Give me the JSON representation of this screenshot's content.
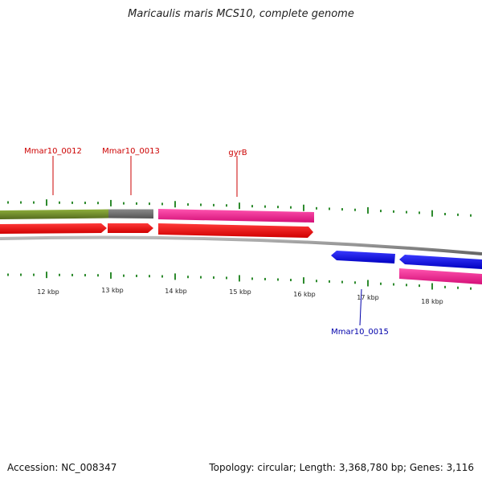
{
  "title": "Maricaulis maris MCS10, complete genome",
  "footer": {
    "accession": "Accession: NC_008347",
    "stats": "Topology: circular; Length: 3,368,780 bp; Genes: 3,116"
  },
  "genes": [
    {
      "name": "Mmar10_0012",
      "color": "#cc0000"
    },
    {
      "name": "Mmar10_0013",
      "color": "#cc0000"
    },
    {
      "name": "gyrB",
      "color": "#cc0000"
    },
    {
      "name": "Mmar10_0015",
      "color": "#0000aa"
    }
  ],
  "scale_labels": [
    "12 kbp",
    "13 kbp",
    "14 kbp",
    "15 kbp",
    "16 kbp",
    "17 kbp",
    "18 kbp"
  ],
  "colors": {
    "tick": "#2e8b2e",
    "backbone": "#888888",
    "cds_forward": "#ff0000",
    "cds_reverse": "#0000ff",
    "feature_green": "#6b8e23",
    "feature_gray": "#707070",
    "feature_pink": "#ff1493"
  }
}
